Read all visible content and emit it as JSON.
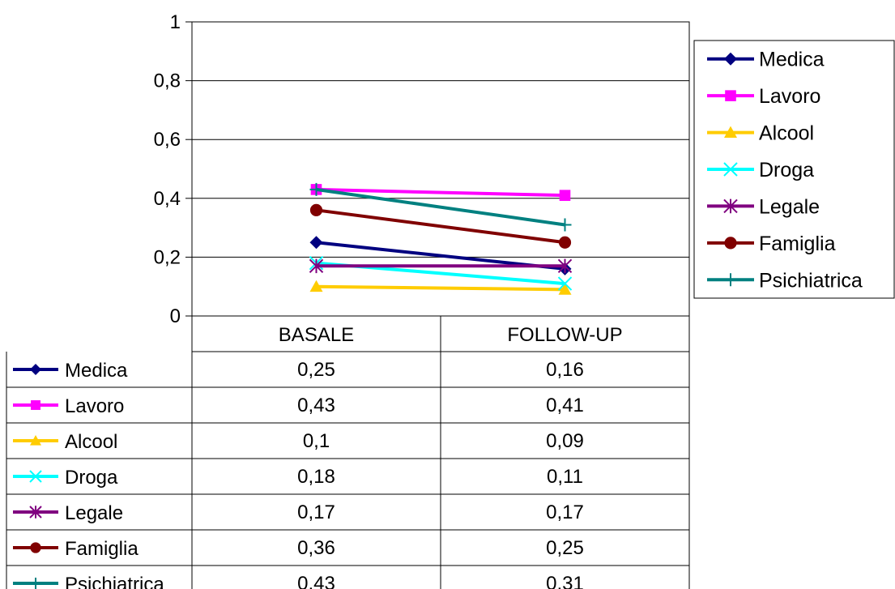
{
  "chart_data": {
    "type": "line",
    "title": "",
    "xlabel": "",
    "ylabel": "",
    "categories": [
      "BASALE",
      "FOLLOW-UP"
    ],
    "ylim": [
      0,
      1
    ],
    "yticks": [
      "0",
      "0,2",
      "0,4",
      "0,6",
      "0,8",
      "1"
    ],
    "ytick_values": [
      0,
      0.2,
      0.4,
      0.6,
      0.8,
      1
    ],
    "grid": true,
    "legend_position": "right",
    "data_table": true,
    "series": [
      {
        "name": "Medica",
        "values": [
          0.25,
          0.16
        ],
        "labels": [
          "0,25",
          "0,16"
        ],
        "color": "#000080",
        "marker": "diamond"
      },
      {
        "name": "Lavoro",
        "values": [
          0.43,
          0.41
        ],
        "labels": [
          "0,43",
          "0,41"
        ],
        "color": "#ff00ff",
        "marker": "square"
      },
      {
        "name": "Alcool",
        "values": [
          0.1,
          0.09
        ],
        "labels": [
          "0,1",
          "0,09"
        ],
        "color": "#ffcc00",
        "marker": "triangle"
      },
      {
        "name": "Droga",
        "values": [
          0.18,
          0.11
        ],
        "labels": [
          "0,18",
          "0,11"
        ],
        "color": "#00ffff",
        "marker": "x"
      },
      {
        "name": "Legale",
        "values": [
          0.17,
          0.17
        ],
        "labels": [
          "0,17",
          "0,17"
        ],
        "color": "#800080",
        "marker": "star"
      },
      {
        "name": "Famiglia",
        "values": [
          0.36,
          0.25
        ],
        "labels": [
          "0,36",
          "0,25"
        ],
        "color": "#800000",
        "marker": "circle"
      },
      {
        "name": "Psichiatrica",
        "values": [
          0.43,
          0.31
        ],
        "labels": [
          "0,43",
          "0,31"
        ],
        "color": "#008080",
        "marker": "plus"
      }
    ]
  }
}
